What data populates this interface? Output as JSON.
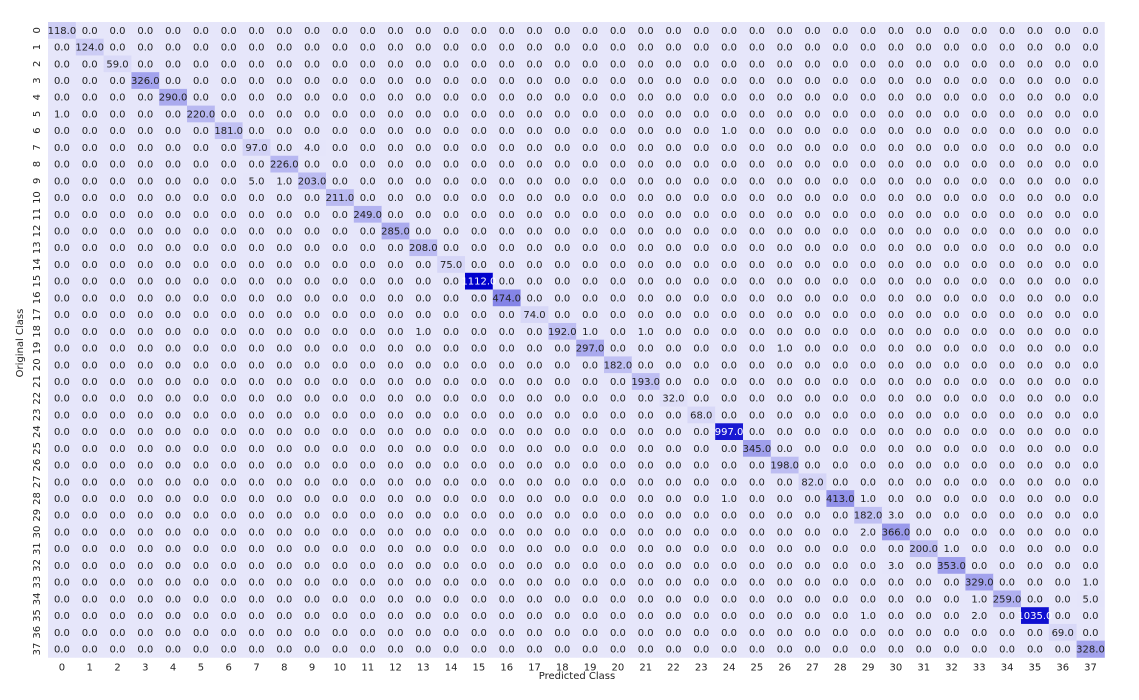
{
  "chart_data": {
    "type": "heatmap",
    "title": "",
    "xlabel": "Predicted Class",
    "ylabel": "Original Class",
    "rows": [
      "0",
      "1",
      "2",
      "3",
      "4",
      "5",
      "6",
      "7",
      "8",
      "9",
      "10",
      "11",
      "12",
      "13",
      "14",
      "15",
      "16",
      "17",
      "18",
      "19",
      "20",
      "21",
      "22",
      "23",
      "24",
      "25",
      "26",
      "27",
      "28",
      "29",
      "30",
      "31",
      "32",
      "33",
      "34",
      "35",
      "36",
      "37"
    ],
    "cols": [
      "0",
      "1",
      "2",
      "3",
      "4",
      "5",
      "6",
      "7",
      "8",
      "9",
      "10",
      "11",
      "12",
      "13",
      "14",
      "15",
      "16",
      "17",
      "18",
      "19",
      "20",
      "21",
      "22",
      "23",
      "24",
      "25",
      "26",
      "27",
      "28",
      "29",
      "30",
      "31",
      "32",
      "33",
      "34",
      "35",
      "36",
      "37"
    ],
    "diagonal": [
      118,
      124,
      59,
      326,
      290,
      220,
      181,
      97,
      226,
      203,
      211,
      249,
      285,
      208,
      75,
      1112,
      474,
      74,
      192,
      297,
      182,
      193,
      32,
      68,
      997,
      345,
      198,
      82,
      413,
      182,
      366,
      200,
      353,
      329,
      259,
      1035,
      69,
      328
    ],
    "off_diagonal": [
      {
        "row": 5,
        "col": 0,
        "value": 1
      },
      {
        "row": 6,
        "col": 24,
        "value": 1
      },
      {
        "row": 7,
        "col": 9,
        "value": 4
      },
      {
        "row": 9,
        "col": 7,
        "value": 5
      },
      {
        "row": 9,
        "col": 8,
        "value": 1
      },
      {
        "row": 18,
        "col": 13,
        "value": 1
      },
      {
        "row": 18,
        "col": 19,
        "value": 1
      },
      {
        "row": 18,
        "col": 21,
        "value": 1
      },
      {
        "row": 19,
        "col": 26,
        "value": 1
      },
      {
        "row": 28,
        "col": 24,
        "value": 1
      },
      {
        "row": 28,
        "col": 29,
        "value": 1
      },
      {
        "row": 29,
        "col": 30,
        "value": 3
      },
      {
        "row": 30,
        "col": 29,
        "value": 2
      },
      {
        "row": 31,
        "col": 32,
        "value": 1
      },
      {
        "row": 32,
        "col": 30,
        "value": 3
      },
      {
        "row": 33,
        "col": 37,
        "value": 1
      },
      {
        "row": 34,
        "col": 33,
        "value": 1
      },
      {
        "row": 34,
        "col": 37,
        "value": 5
      },
      {
        "row": 35,
        "col": 29,
        "value": 1
      },
      {
        "row": 35,
        "col": 33,
        "value": 2
      }
    ],
    "value_format": "one decimal",
    "colormap": {
      "low": "#e6e6fa",
      "high": "#0000cd"
    },
    "grid": false,
    "legend": "none"
  }
}
